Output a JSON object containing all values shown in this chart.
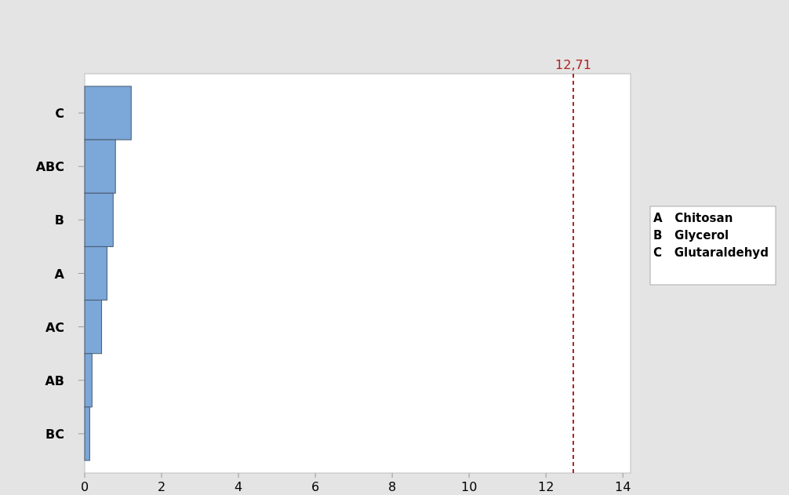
{
  "chart_data": {
    "type": "bar",
    "orientation": "horizontal",
    "categories": [
      "C",
      "ABC",
      "B",
      "A",
      "AC",
      "AB",
      "BC"
    ],
    "values": [
      1.21,
      0.8,
      0.74,
      0.58,
      0.44,
      0.19,
      0.13
    ],
    "color": "#7ba7d9",
    "xlim": [
      0,
      14.2
    ],
    "xticks": [
      0,
      2,
      4,
      6,
      8,
      10,
      12,
      14
    ],
    "grid": false,
    "ref_lines": [
      {
        "axis": "x",
        "value": 12.71,
        "label": "12,71",
        "color": "#b22222",
        "line_style": "dashed"
      }
    ],
    "annotations": [
      "A   Chitosan",
      "B   Glycerol",
      "C   Glutaraldehyd"
    ]
  }
}
